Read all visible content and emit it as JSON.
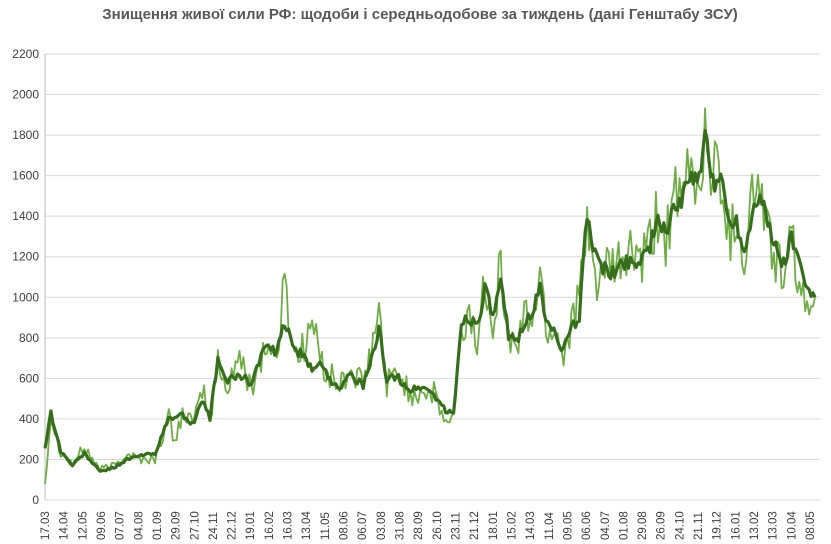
{
  "chart_data": {
    "type": "line",
    "title": "Знищення живої сили РФ: щодоби і середньодобове за тиждень (дані Генштабу ЗСУ)",
    "xlabel": "",
    "ylabel": "",
    "ylim": [
      0,
      2200
    ],
    "yticks": [
      0,
      200,
      400,
      600,
      800,
      1000,
      1200,
      1400,
      1600,
      1800,
      2000,
      2200
    ],
    "grid": true,
    "legend": "none",
    "x_tick_labels": [
      "17.03",
      "14.04",
      "12.05",
      "09.06",
      "07.07",
      "04.08",
      "01.09",
      "29.09",
      "27.10",
      "24.11",
      "22.12",
      "19.01",
      "16.02",
      "16.03",
      "13.04",
      "11.05",
      "08.06",
      "06.07",
      "03.08",
      "31.08",
      "28.09",
      "26.10",
      "23.11",
      "21.12",
      "18.01",
      "15.02",
      "14.03",
      "11.04",
      "09.05",
      "06.06",
      "04.07",
      "01.08",
      "29.08",
      "26.09",
      "24.10",
      "21.11",
      "19.12",
      "16.01",
      "13.02",
      "13.03",
      "10.04",
      "08.05"
    ],
    "series_keypoints_note_free": true,
    "series": [
      {
        "color": "#70ad47",
        "width": 1.8,
        "anchors": [
          [
            0,
            80
          ],
          [
            3,
            420
          ],
          [
            8,
            240
          ],
          [
            14,
            180
          ],
          [
            20,
            260
          ],
          [
            28,
            150
          ],
          [
            35,
            170
          ],
          [
            42,
            230
          ],
          [
            49,
            200
          ],
          [
            56,
            200
          ],
          [
            63,
            410
          ],
          [
            66,
            280
          ],
          [
            70,
            440
          ],
          [
            76,
            370
          ],
          [
            80,
            560
          ],
          [
            84,
            380
          ],
          [
            88,
            680
          ],
          [
            92,
            540
          ],
          [
            98,
            700
          ],
          [
            105,
            560
          ],
          [
            112,
            760
          ],
          [
            118,
            700
          ],
          [
            122,
            1080
          ],
          [
            126,
            760
          ],
          [
            130,
            720
          ],
          [
            136,
            880
          ],
          [
            140,
            700
          ],
          [
            144,
            620
          ],
          [
            150,
            560
          ],
          [
            156,
            640
          ],
          [
            162,
            560
          ],
          [
            166,
            720
          ],
          [
            170,
            920
          ],
          [
            174,
            580
          ],
          [
            180,
            620
          ],
          [
            186,
            520
          ],
          [
            192,
            540
          ],
          [
            198,
            520
          ],
          [
            204,
            380
          ],
          [
            208,
            400
          ],
          [
            212,
            800
          ],
          [
            216,
            930
          ],
          [
            220,
            760
          ],
          [
            224,
            1100
          ],
          [
            228,
            900
          ],
          [
            232,
            1160
          ],
          [
            236,
            780
          ],
          [
            240,
            760
          ],
          [
            244,
            900
          ],
          [
            248,
            900
          ],
          [
            252,
            1100
          ],
          [
            256,
            820
          ],
          [
            260,
            860
          ],
          [
            264,
            700
          ],
          [
            268,
            900
          ],
          [
            272,
            1000
          ],
          [
            276,
            1300
          ],
          [
            280,
            1100
          ],
          [
            284,
            1120
          ],
          [
            288,
            1120
          ],
          [
            292,
            1150
          ],
          [
            296,
            1200
          ],
          [
            300,
            1220
          ],
          [
            304,
            1160
          ],
          [
            308,
            1250
          ],
          [
            312,
            1400
          ],
          [
            316,
            1280
          ],
          [
            320,
            1500
          ],
          [
            324,
            1400
          ],
          [
            328,
            1680
          ],
          [
            332,
            1500
          ],
          [
            336,
            1800
          ],
          [
            340,
            1600
          ],
          [
            344,
            1650
          ],
          [
            348,
            1300
          ],
          [
            352,
            1400
          ],
          [
            356,
            1200
          ],
          [
            360,
            1500
          ],
          [
            364,
            1560
          ],
          [
            368,
            1300
          ],
          [
            372,
            1200
          ],
          [
            376,
            1100
          ],
          [
            380,
            1260
          ],
          [
            384,
            1100
          ],
          [
            388,
            880
          ],
          [
            392,
            1000
          ]
        ]
      },
      {
        "color": "#376e1e",
        "width": 3.2,
        "anchors": [
          [
            0,
            260
          ],
          [
            3,
            430
          ],
          [
            8,
            240
          ],
          [
            14,
            170
          ],
          [
            20,
            230
          ],
          [
            28,
            140
          ],
          [
            35,
            160
          ],
          [
            42,
            200
          ],
          [
            49,
            220
          ],
          [
            56,
            230
          ],
          [
            63,
            400
          ],
          [
            70,
            420
          ],
          [
            76,
            370
          ],
          [
            80,
            500
          ],
          [
            84,
            400
          ],
          [
            88,
            700
          ],
          [
            92,
            580
          ],
          [
            98,
            620
          ],
          [
            105,
            580
          ],
          [
            112,
            760
          ],
          [
            118,
            720
          ],
          [
            122,
            880
          ],
          [
            126,
            760
          ],
          [
            130,
            720
          ],
          [
            136,
            640
          ],
          [
            140,
            700
          ],
          [
            144,
            600
          ],
          [
            150,
            560
          ],
          [
            156,
            620
          ],
          [
            162,
            560
          ],
          [
            166,
            680
          ],
          [
            170,
            840
          ],
          [
            174,
            600
          ],
          [
            180,
            600
          ],
          [
            186,
            540
          ],
          [
            192,
            560
          ],
          [
            198,
            520
          ],
          [
            204,
            440
          ],
          [
            208,
            420
          ],
          [
            212,
            880
          ],
          [
            216,
            900
          ],
          [
            220,
            860
          ],
          [
            224,
            1040
          ],
          [
            228,
            900
          ],
          [
            232,
            1060
          ],
          [
            236,
            820
          ],
          [
            240,
            780
          ],
          [
            244,
            880
          ],
          [
            248,
            920
          ],
          [
            252,
            1040
          ],
          [
            256,
            860
          ],
          [
            260,
            820
          ],
          [
            264,
            740
          ],
          [
            268,
            840
          ],
          [
            272,
            900
          ],
          [
            276,
            1430
          ],
          [
            280,
            1200
          ],
          [
            284,
            1150
          ],
          [
            288,
            1100
          ],
          [
            292,
            1150
          ],
          [
            296,
            1180
          ],
          [
            300,
            1170
          ],
          [
            304,
            1200
          ],
          [
            308,
            1260
          ],
          [
            312,
            1360
          ],
          [
            316,
            1320
          ],
          [
            320,
            1460
          ],
          [
            324,
            1440
          ],
          [
            328,
            1620
          ],
          [
            332,
            1540
          ],
          [
            336,
            1780
          ],
          [
            340,
            1560
          ],
          [
            344,
            1600
          ],
          [
            348,
            1380
          ],
          [
            352,
            1380
          ],
          [
            356,
            1220
          ],
          [
            360,
            1420
          ],
          [
            364,
            1540
          ],
          [
            368,
            1360
          ],
          [
            372,
            1240
          ],
          [
            376,
            1160
          ],
          [
            380,
            1300
          ],
          [
            384,
            1160
          ],
          [
            388,
            1040
          ],
          [
            392,
            1000
          ]
        ]
      }
    ]
  }
}
